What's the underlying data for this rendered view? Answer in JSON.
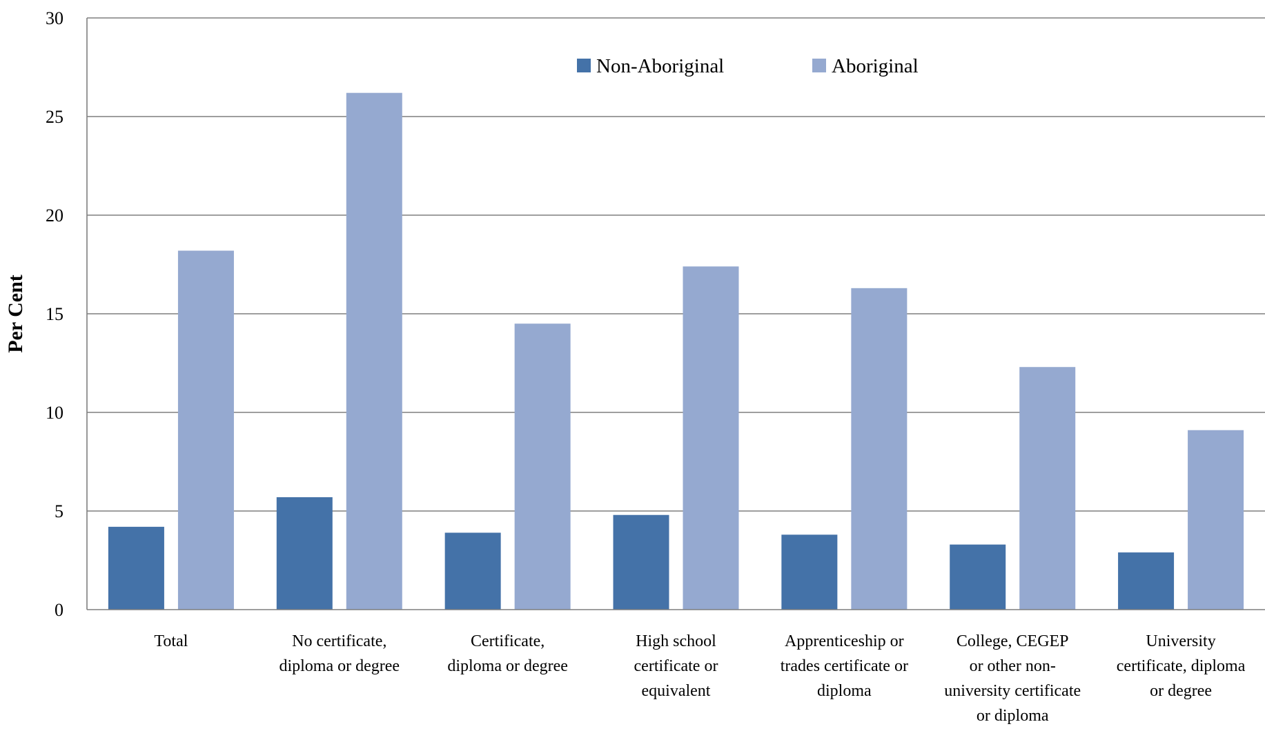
{
  "chart_data": {
    "type": "bar",
    "title": "",
    "xlabel": "",
    "ylabel": "Per Cent",
    "ylim": [
      0,
      30
    ],
    "yticks": [
      0,
      5,
      10,
      15,
      20,
      25,
      30
    ],
    "grid": true,
    "legend_position": "top-center",
    "categories": [
      [
        "Total"
      ],
      [
        "No certificate,",
        "diploma or degree"
      ],
      [
        "Certificate,",
        "diploma or degree"
      ],
      [
        "High school",
        "certificate or",
        "equivalent"
      ],
      [
        "Apprenticeship or",
        "trades certificate or",
        "diploma"
      ],
      [
        "College, CEGEP",
        "or other non-",
        "university certificate",
        "or diploma"
      ],
      [
        "University",
        "certificate, diploma",
        "or degree"
      ]
    ],
    "series": [
      {
        "name": "Non-Aboriginal",
        "color": "#4472a8",
        "values": [
          4.2,
          5.7,
          3.9,
          4.8,
          3.8,
          3.3,
          2.9
        ]
      },
      {
        "name": "Aboriginal",
        "color": "#95a9d0",
        "values": [
          18.2,
          26.2,
          14.5,
          17.4,
          16.3,
          12.3,
          9.1
        ]
      }
    ]
  }
}
